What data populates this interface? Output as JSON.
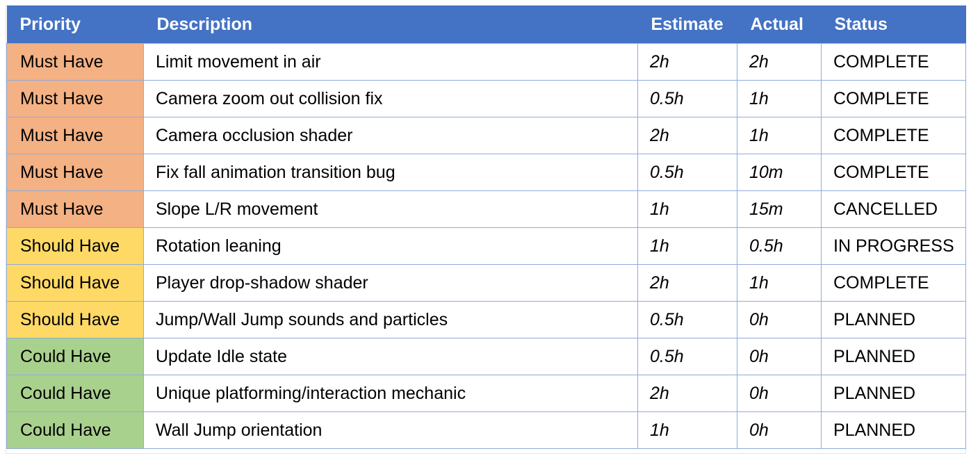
{
  "headers": {
    "priority": "Priority",
    "description": "Description",
    "estimate": "Estimate",
    "actual": "Actual",
    "status": "Status"
  },
  "colors": {
    "header": "#4472c4",
    "grid": "#8eaadb",
    "must_have": "#f4b183",
    "should_have": "#ffd966",
    "could_have": "#a9d18e"
  },
  "rows": [
    {
      "priority": "Must Have",
      "description": "Limit movement in air",
      "estimate": "2h",
      "actual": "2h",
      "status": "COMPLETE"
    },
    {
      "priority": "Must Have",
      "description": "Camera zoom out collision fix",
      "estimate": "0.5h",
      "actual": "1h",
      "status": "COMPLETE"
    },
    {
      "priority": "Must Have",
      "description": "Camera occlusion shader",
      "estimate": "2h",
      "actual": "1h",
      "status": "COMPLETE"
    },
    {
      "priority": "Must Have",
      "description": "Fix fall animation transition bug",
      "estimate": "0.5h",
      "actual": "10m",
      "status": "COMPLETE"
    },
    {
      "priority": "Must Have",
      "description": "Slope L/R movement",
      "estimate": "1h",
      "actual": "15m",
      "status": "CANCELLED"
    },
    {
      "priority": "Should Have",
      "description": "Rotation leaning",
      "estimate": "1h",
      "actual": "0.5h",
      "status": "IN PROGRESS"
    },
    {
      "priority": "Should Have",
      "description": "Player drop-shadow shader",
      "estimate": "2h",
      "actual": "1h",
      "status": "COMPLETE"
    },
    {
      "priority": "Should Have",
      "description": "Jump/Wall Jump sounds and particles",
      "estimate": "0.5h",
      "actual": "0h",
      "status": "PLANNED"
    },
    {
      "priority": "Could Have",
      "description": "Update Idle state",
      "estimate": "0.5h",
      "actual": "0h",
      "status": "PLANNED"
    },
    {
      "priority": "Could Have",
      "description": "Unique platforming/interaction mechanic",
      "estimate": "2h",
      "actual": "0h",
      "status": "PLANNED"
    },
    {
      "priority": "Could Have",
      "description": "Wall Jump orientation",
      "estimate": "1h",
      "actual": "0h",
      "status": "PLANNED"
    }
  ]
}
